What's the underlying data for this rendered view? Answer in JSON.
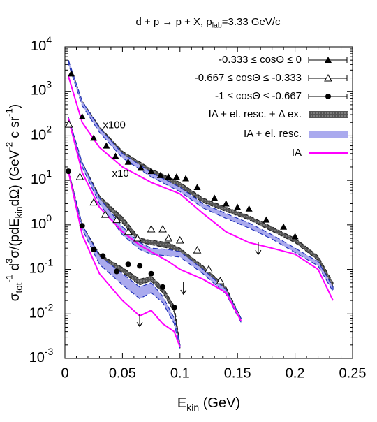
{
  "chart_data": {
    "type": "scatter",
    "title": [
      {
        "text": "d + p → p + X, p"
      },
      {
        "text": "lab",
        "shift": "sub"
      },
      {
        "text": "=3.33 GeV/c"
      }
    ],
    "xlabel": [
      {
        "text": "E"
      },
      {
        "text": "kin",
        "shift": "sub"
      },
      {
        "text": " (GeV)"
      }
    ],
    "ylabel": [
      {
        "text": "σ"
      },
      {
        "text": "tot",
        "shift": "sub"
      },
      {
        "text": "-1",
        "shift": "sup"
      },
      {
        "text": " d"
      },
      {
        "text": "3",
        "shift": "sup"
      },
      {
        "text": "σ/(pdE"
      },
      {
        "text": "kin",
        "shift": "sub"
      },
      {
        "text": "dΩ) (GeV"
      },
      {
        "text": "-2",
        "shift": "sup"
      },
      {
        "text": " c sr"
      },
      {
        "text": "-1",
        "shift": "sup"
      },
      {
        "text": ")"
      }
    ],
    "xlim": [
      0,
      0.25
    ],
    "xticks": [
      0,
      0.05,
      0.1,
      0.15,
      0.2,
      0.25
    ],
    "ylim": [
      0.001,
      10000
    ],
    "ylog": true,
    "yticks": [
      {
        "value": 0.001,
        "label": "10",
        "exp": "-3"
      },
      {
        "value": 0.01,
        "label": "10",
        "exp": "-2"
      },
      {
        "value": 0.1,
        "label": "10",
        "exp": "-1"
      },
      {
        "value": 1,
        "label": "10",
        "exp": "0"
      },
      {
        "value": 10,
        "label": "10",
        "exp": "1"
      },
      {
        "value": 100,
        "label": "10",
        "exp": "2"
      },
      {
        "value": 1000,
        "label": "10",
        "exp": "3"
      },
      {
        "value": 10000,
        "label": "10",
        "exp": "4"
      }
    ],
    "legend": "top-right",
    "annotations": [
      "x100",
      "x10"
    ],
    "series": [
      {
        "name": "-0.333 ≤ cosΘ ≤ 0",
        "style": "points",
        "marker": "filled-triangle",
        "color": "#000000",
        "x": [
          0.0055,
          0.015,
          0.025,
          0.036,
          0.044,
          0.055,
          0.066,
          0.075,
          0.083,
          0.09,
          0.097,
          0.105,
          0.115,
          0.13,
          0.14,
          0.15,
          0.16,
          0.175,
          0.19,
          0.2
        ],
        "values": [
          2500,
          270,
          90,
          60,
          35,
          26,
          19,
          16,
          13,
          12,
          12,
          11,
          7,
          4,
          3,
          2.5,
          2.3,
          1.3,
          0.9,
          0.55
        ],
        "limits": {
          "x": [
            0.168
          ],
          "values": [
            0.25
          ]
        }
      },
      {
        "name": "-0.667 ≤ cosΘ ≤ -0.333",
        "style": "points",
        "marker": "open-triangle",
        "color": "#000000",
        "x": [
          0.0035,
          0.013,
          0.025,
          0.035,
          0.045,
          0.055,
          0.063,
          0.075,
          0.085,
          0.09,
          0.1,
          0.115,
          0.125,
          0.135
        ],
        "values": [
          180,
          12,
          3.2,
          1.7,
          1.3,
          0.7,
          0.5,
          0.8,
          0.8,
          0.5,
          0.45,
          0.27,
          0.1,
          0.055
        ],
        "limits": {
          "x": [
            0.103
          ],
          "values": [
            0.032
          ]
        }
      },
      {
        "name": "-1 ≤ cosΘ ≤ -0.667",
        "style": "points",
        "marker": "filled-circle",
        "color": "#000000",
        "x": [
          0.003,
          0.015,
          0.025,
          0.033,
          0.045,
          0.055,
          0.065,
          0.075,
          0.085,
          0.095
        ],
        "values": [
          16,
          0.95,
          0.28,
          0.2,
          0.09,
          0.13,
          0.12,
          0.08,
          0.04,
          0.014
        ],
        "limits": {
          "x": [
            0.065
          ],
          "values": [
            0.006
          ]
        }
      },
      {
        "name": "IA + el. resc. + Δ ex.",
        "style": "band",
        "color": "#555555",
        "curves": [
          {
            "x": [
              0.003,
              0.015,
              0.03,
              0.05,
              0.075,
              0.1,
              0.12,
              0.14,
              0.16,
              0.18,
              0.2,
              0.22,
              0.233
            ],
            "lower": [
              4500,
              520,
              130,
              36,
              14,
              7,
              3.2,
              2,
              1.3,
              0.72,
              0.4,
              0.16,
              0.04
            ],
            "upper": [
              5000,
              600,
              160,
              45,
              18,
              9,
              4,
              2.5,
              1.6,
              0.9,
              0.5,
              0.2,
              0.05
            ]
          },
          {
            "x": [
              0.003,
              0.015,
              0.03,
              0.05,
              0.065,
              0.075,
              0.09,
              0.1,
              0.12,
              0.14,
              0.153
            ],
            "lower": [
              240,
              22,
              3.6,
              1.1,
              0.4,
              0.36,
              0.3,
              0.24,
              0.095,
              0.032,
              0.007
            ],
            "upper": [
              260,
              25,
              4.5,
              1.5,
              0.5,
              0.45,
              0.4,
              0.3,
              0.12,
              0.04,
              0.008
            ]
          },
          {
            "x": [
              0.003,
              0.015,
              0.03,
              0.05,
              0.065,
              0.075,
              0.085,
              0.095,
              0.1
            ],
            "lower": [
              16,
              0.9,
              0.17,
              0.085,
              0.045,
              0.055,
              0.03,
              0.011,
              0.0017
            ],
            "upper": [
              17,
              1,
              0.22,
              0.11,
              0.06,
              0.07,
              0.04,
              0.015,
              0.002
            ]
          }
        ]
      },
      {
        "name": "IA + el. resc.",
        "style": "band",
        "color": "#aaaaee",
        "curves": [
          {
            "x": [
              0.003,
              0.015,
              0.03,
              0.05,
              0.075,
              0.1,
              0.12,
              0.14,
              0.16,
              0.18,
              0.2,
              0.22,
              0.233
            ],
            "lower": [
              4200,
              480,
              120,
              32,
              12,
              5.6,
              2.4,
              1.4,
              0.85,
              0.48,
              0.24,
              0.12,
              0.032
            ],
            "upper": [
              5000,
              600,
              150,
              40,
              15,
              7,
              3,
              1.8,
              1.1,
              0.6,
              0.3,
              0.15,
              0.04
            ]
          },
          {
            "x": [
              0.003,
              0.015,
              0.03,
              0.05,
              0.065,
              0.075,
              0.09,
              0.1,
              0.12,
              0.14,
              0.153
            ],
            "lower": [
              230,
              20,
              3,
              0.6,
              0.28,
              0.22,
              0.2,
              0.19,
              0.08,
              0.028,
              0.0065
            ],
            "upper": [
              260,
              25,
              4,
              0.9,
              0.4,
              0.3,
              0.28,
              0.25,
              0.1,
              0.035,
              0.008
            ]
          },
          {
            "x": [
              0.003,
              0.015,
              0.03,
              0.05,
              0.065,
              0.075,
              0.085,
              0.095,
              0.1
            ],
            "lower": [
              15,
              0.8,
              0.13,
              0.045,
              0.022,
              0.03,
              0.018,
              0.006,
              0.0016
            ],
            "upper": [
              17,
              1,
              0.2,
              0.08,
              0.04,
              0.05,
              0.025,
              0.008,
              0.002
            ]
          }
        ]
      },
      {
        "name": "IA",
        "style": "line",
        "color": "#ff00ff",
        "curves": [
          {
            "x": [
              0.003,
              0.015,
              0.03,
              0.05,
              0.075,
              0.1,
              0.12,
              0.14,
              0.16,
              0.18,
              0.2,
              0.22,
              0.233
            ],
            "values": [
              2200,
              200,
              55,
              20,
              9,
              5,
              1.8,
              0.7,
              0.4,
              0.3,
              0.22,
              0.1,
              0.02
            ]
          },
          {
            "x": [
              0.003,
              0.015,
              0.03,
              0.05,
              0.065,
              0.075,
              0.09,
              0.1,
              0.12,
              0.14,
              0.153
            ],
            "values": [
              250,
              15,
              2.5,
              0.7,
              0.35,
              0.25,
              0.15,
              0.1,
              0.06,
              0.03,
              0.007
            ]
          },
          {
            "x": [
              0.003,
              0.015,
              0.03,
              0.05,
              0.065,
              0.075,
              0.085,
              0.095,
              0.1
            ],
            "values": [
              16,
              0.6,
              0.08,
              0.02,
              0.009,
              0.012,
              0.006,
              0.004,
              0.0018
            ]
          }
        ]
      }
    ]
  }
}
